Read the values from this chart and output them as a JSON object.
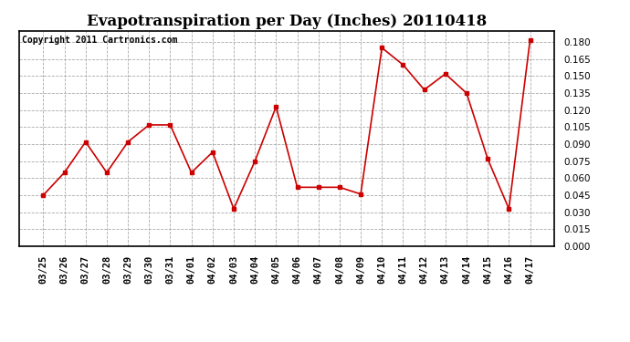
{
  "title": "Evapotranspiration per Day (Inches) 20110418",
  "copyright": "Copyright 2011 Cartronics.com",
  "x_labels": [
    "03/25",
    "03/26",
    "03/27",
    "03/28",
    "03/29",
    "03/30",
    "03/31",
    "04/01",
    "04/02",
    "04/03",
    "04/04",
    "04/05",
    "04/06",
    "04/07",
    "04/08",
    "04/09",
    "04/10",
    "04/11",
    "04/12",
    "04/13",
    "04/14",
    "04/15",
    "04/16",
    "04/17"
  ],
  "y_values": [
    0.045,
    0.065,
    0.092,
    0.065,
    0.092,
    0.107,
    0.107,
    0.065,
    0.083,
    0.033,
    0.075,
    0.123,
    0.052,
    0.052,
    0.052,
    0.046,
    0.175,
    0.16,
    0.138,
    0.152,
    0.135,
    0.077,
    0.033,
    0.182
  ],
  "line_color": "#cc0000",
  "marker": "s",
  "marker_size": 3,
  "ylim": [
    0.0,
    0.19
  ],
  "yticks": [
    0.0,
    0.015,
    0.03,
    0.045,
    0.06,
    0.075,
    0.09,
    0.105,
    0.12,
    0.135,
    0.15,
    0.165,
    0.18
  ],
  "grid_color": "#aaaaaa",
  "bg_color": "#ffffff",
  "title_fontsize": 12,
  "copyright_fontsize": 7,
  "tick_fontsize": 7.5,
  "figsize": [
    6.9,
    3.75
  ],
  "dpi": 100
}
